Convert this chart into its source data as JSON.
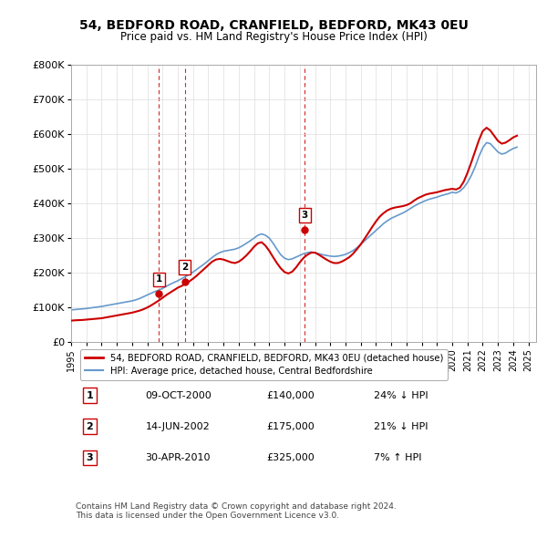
{
  "title": "54, BEDFORD ROAD, CRANFIELD, BEDFORD, MK43 0EU",
  "subtitle": "Price paid vs. HM Land Registry's House Price Index (HPI)",
  "ylabel": "",
  "ylim": [
    0,
    800000
  ],
  "yticks": [
    0,
    100000,
    200000,
    300000,
    400000,
    500000,
    600000,
    700000,
    800000
  ],
  "ytick_labels": [
    "£0",
    "£100K",
    "£200K",
    "£300K",
    "£400K",
    "£500K",
    "£600K",
    "£700K",
    "£800K"
  ],
  "xlim_start": 1995.0,
  "xlim_end": 2025.5,
  "sale_dates": [
    2000.77,
    2002.45,
    2010.33
  ],
  "sale_prices": [
    140000,
    175000,
    325000
  ],
  "sale_labels": [
    "1",
    "2",
    "3"
  ],
  "red_line_color": "#cc0000",
  "blue_line_color": "#6699cc",
  "vline_color": "#cc0000",
  "legend_entries": [
    "54, BEDFORD ROAD, CRANFIELD, BEDFORD, MK43 0EU (detached house)",
    "HPI: Average price, detached house, Central Bedfordshire"
  ],
  "table_data": [
    [
      "1",
      "09-OCT-2000",
      "£140,000",
      "24% ↓ HPI"
    ],
    [
      "2",
      "14-JUN-2002",
      "£175,000",
      "21% ↓ HPI"
    ],
    [
      "3",
      "30-APR-2010",
      "£325,000",
      "7% ↑ HPI"
    ]
  ],
  "footer_text": "Contains HM Land Registry data © Crown copyright and database right 2024.\nThis data is licensed under the Open Government Licence v3.0.",
  "hpi_years": [
    1995.0,
    1995.25,
    1995.5,
    1995.75,
    1996.0,
    1996.25,
    1996.5,
    1996.75,
    1997.0,
    1997.25,
    1997.5,
    1997.75,
    1998.0,
    1998.25,
    1998.5,
    1998.75,
    1999.0,
    1999.25,
    1999.5,
    1999.75,
    2000.0,
    2000.25,
    2000.5,
    2000.75,
    2001.0,
    2001.25,
    2001.5,
    2001.75,
    2002.0,
    2002.25,
    2002.5,
    2002.75,
    2003.0,
    2003.25,
    2003.5,
    2003.75,
    2004.0,
    2004.25,
    2004.5,
    2004.75,
    2005.0,
    2005.25,
    2005.5,
    2005.75,
    2006.0,
    2006.25,
    2006.5,
    2006.75,
    2007.0,
    2007.25,
    2007.5,
    2007.75,
    2008.0,
    2008.25,
    2008.5,
    2008.75,
    2009.0,
    2009.25,
    2009.5,
    2009.75,
    2010.0,
    2010.25,
    2010.5,
    2010.75,
    2011.0,
    2011.25,
    2011.5,
    2011.75,
    2012.0,
    2012.25,
    2012.5,
    2012.75,
    2013.0,
    2013.25,
    2013.5,
    2013.75,
    2014.0,
    2014.25,
    2014.5,
    2014.75,
    2015.0,
    2015.25,
    2015.5,
    2015.75,
    2016.0,
    2016.25,
    2016.5,
    2016.75,
    2017.0,
    2017.25,
    2017.5,
    2017.75,
    2018.0,
    2018.25,
    2018.5,
    2018.75,
    2019.0,
    2019.25,
    2019.5,
    2019.75,
    2020.0,
    2020.25,
    2020.5,
    2020.75,
    2021.0,
    2021.25,
    2021.5,
    2021.75,
    2022.0,
    2022.25,
    2022.5,
    2022.75,
    2023.0,
    2023.25,
    2023.5,
    2023.75,
    2024.0,
    2024.25
  ],
  "hpi_values": [
    93000,
    94000,
    95000,
    96000,
    97000,
    98500,
    100000,
    101500,
    103000,
    105000,
    107000,
    109000,
    111000,
    113000,
    115000,
    117000,
    119000,
    122000,
    126000,
    131000,
    136000,
    141000,
    146000,
    150000,
    155000,
    161000,
    167000,
    172000,
    177000,
    183000,
    189000,
    195000,
    202000,
    210000,
    218000,
    226000,
    235000,
    244000,
    252000,
    258000,
    262000,
    264000,
    266000,
    268000,
    272000,
    278000,
    285000,
    292000,
    300000,
    308000,
    312000,
    308000,
    300000,
    285000,
    268000,
    252000,
    242000,
    238000,
    240000,
    245000,
    250000,
    255000,
    258000,
    260000,
    258000,
    255000,
    252000,
    250000,
    248000,
    247000,
    248000,
    250000,
    253000,
    258000,
    264000,
    272000,
    282000,
    292000,
    302000,
    312000,
    322000,
    332000,
    342000,
    350000,
    357000,
    362000,
    367000,
    372000,
    378000,
    385000,
    392000,
    398000,
    403000,
    408000,
    412000,
    415000,
    418000,
    422000,
    425000,
    428000,
    432000,
    430000,
    435000,
    445000,
    460000,
    480000,
    505000,
    535000,
    560000,
    575000,
    572000,
    560000,
    548000,
    542000,
    545000,
    552000,
    558000,
    562000
  ],
  "red_line_years": [
    1995.0,
    1995.25,
    1995.5,
    1995.75,
    1996.0,
    1996.25,
    1996.5,
    1996.75,
    1997.0,
    1997.25,
    1997.5,
    1997.75,
    1998.0,
    1998.25,
    1998.5,
    1998.75,
    1999.0,
    1999.25,
    1999.5,
    1999.75,
    2000.0,
    2000.25,
    2000.5,
    2000.75,
    2001.0,
    2001.25,
    2001.5,
    2001.75,
    2002.0,
    2002.25,
    2002.5,
    2002.75,
    2003.0,
    2003.25,
    2003.5,
    2003.75,
    2004.0,
    2004.25,
    2004.5,
    2004.75,
    2005.0,
    2005.25,
    2005.5,
    2005.75,
    2006.0,
    2006.25,
    2006.5,
    2006.75,
    2007.0,
    2007.25,
    2007.5,
    2007.75,
    2008.0,
    2008.25,
    2008.5,
    2008.75,
    2009.0,
    2009.25,
    2009.5,
    2009.75,
    2010.0,
    2010.25,
    2010.5,
    2010.75,
    2011.0,
    2011.25,
    2011.5,
    2011.75,
    2012.0,
    2012.25,
    2012.5,
    2012.75,
    2013.0,
    2013.25,
    2013.5,
    2013.75,
    2014.0,
    2014.25,
    2014.5,
    2014.75,
    2015.0,
    2015.25,
    2015.5,
    2015.75,
    2016.0,
    2016.25,
    2016.5,
    2016.75,
    2017.0,
    2017.25,
    2017.5,
    2017.75,
    2018.0,
    2018.25,
    2018.5,
    2018.75,
    2019.0,
    2019.25,
    2019.5,
    2019.75,
    2020.0,
    2020.25,
    2020.5,
    2020.75,
    2021.0,
    2021.25,
    2021.5,
    2021.75,
    2022.0,
    2022.25,
    2022.5,
    2022.75,
    2023.0,
    2023.25,
    2023.5,
    2023.75,
    2024.0,
    2024.25
  ],
  "red_line_values": [
    62000,
    63000,
    63500,
    64000,
    65000,
    66000,
    67000,
    68000,
    69000,
    71000,
    73000,
    75000,
    77000,
    79000,
    81000,
    83000,
    85000,
    88000,
    91000,
    95000,
    100000,
    106000,
    113000,
    120000,
    128000,
    136000,
    143000,
    150000,
    157000,
    162000,
    168000,
    175000,
    183000,
    192000,
    202000,
    212000,
    222000,
    232000,
    238000,
    240000,
    238000,
    234000,
    230000,
    228000,
    232000,
    240000,
    250000,
    262000,
    275000,
    285000,
    288000,
    278000,
    263000,
    245000,
    228000,
    213000,
    202000,
    198000,
    203000,
    215000,
    230000,
    243000,
    252000,
    258000,
    258000,
    252000,
    245000,
    238000,
    232000,
    228000,
    228000,
    232000,
    238000,
    245000,
    255000,
    268000,
    282000,
    298000,
    315000,
    332000,
    348000,
    362000,
    372000,
    380000,
    385000,
    388000,
    390000,
    392000,
    395000,
    400000,
    408000,
    415000,
    420000,
    425000,
    428000,
    430000,
    432000,
    435000,
    438000,
    440000,
    442000,
    440000,
    445000,
    462000,
    488000,
    518000,
    550000,
    582000,
    608000,
    618000,
    610000,
    595000,
    580000,
    572000,
    575000,
    582000,
    590000,
    595000
  ]
}
